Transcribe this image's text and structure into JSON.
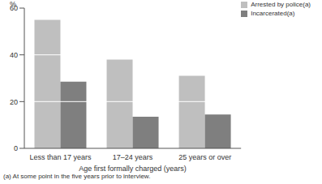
{
  "chart_data": {
    "type": "bar",
    "y_label": "%",
    "x_label": "Age first formally charged (years)",
    "categories": [
      "Less than 17 years",
      "17–24 years",
      "25 years or over"
    ],
    "series": [
      {
        "name": "Arrested by police(a)",
        "color": "#bfbfbf",
        "values": [
          55,
          38,
          31
        ]
      },
      {
        "name": "Incarcerated(a)",
        "color": "#7f7f7f",
        "values": [
          28.5,
          13.5,
          14.5
        ]
      }
    ],
    "ylim": [
      0,
      60
    ],
    "yticks": [
      0,
      20,
      40,
      60
    ],
    "grid": true,
    "legend": "top-right",
    "annotations": [
      "(a) At some point in the five years prior to interview."
    ]
  }
}
